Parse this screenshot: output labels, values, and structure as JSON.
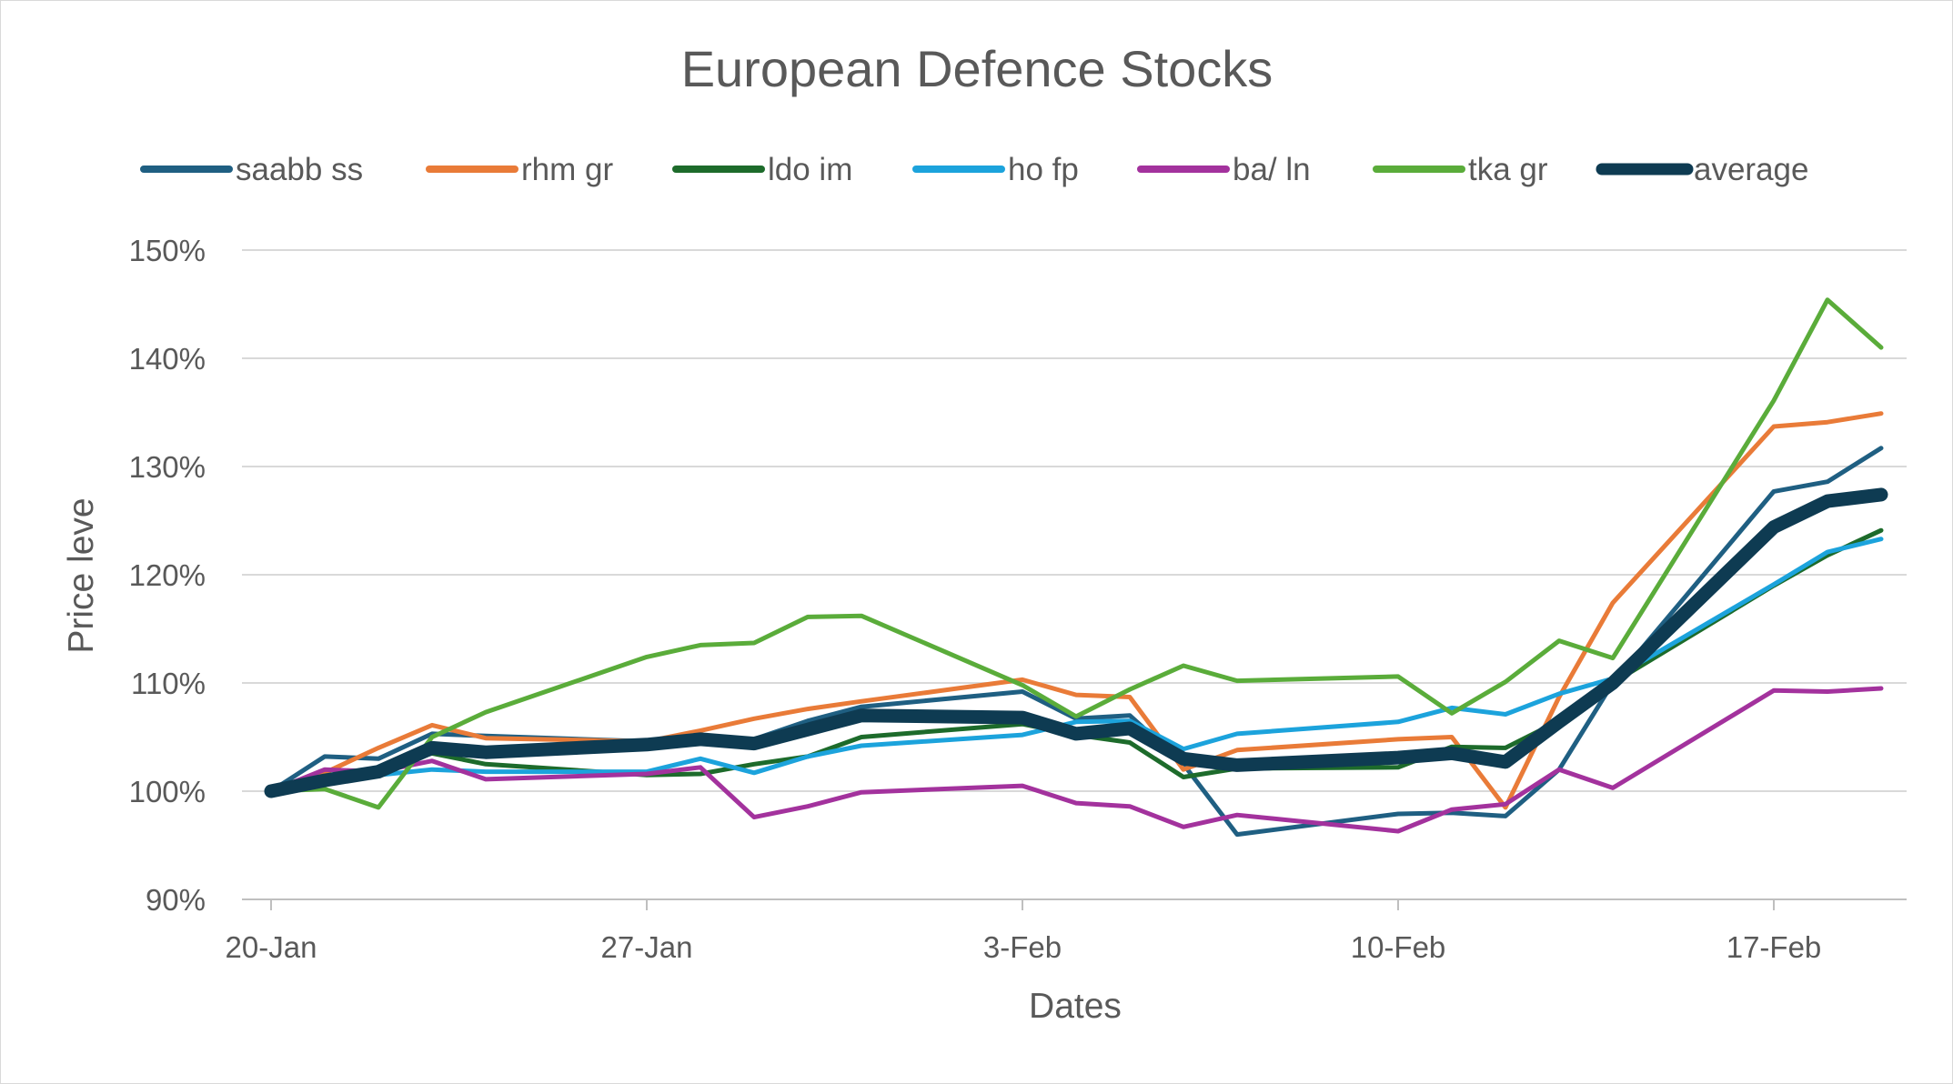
{
  "chart_data": {
    "type": "line",
    "title": "European Defence Stocks",
    "xlabel": "Dates",
    "ylabel": "Price leve",
    "ylim": [
      0.9,
      1.5
    ],
    "yticks": [
      0.9,
      1.0,
      1.1,
      1.2,
      1.3,
      1.4,
      1.5
    ],
    "ytick_labels": [
      "90%",
      "100%",
      "110%",
      "120%",
      "130%",
      "140%",
      "150%"
    ],
    "xlim": [
      0,
      31
    ],
    "xticks": [
      0,
      7,
      14,
      21,
      28
    ],
    "xtick_labels": [
      "20-Jan",
      "27-Jan",
      "3-Feb",
      "10-Feb",
      "17-Feb"
    ],
    "x": [
      0,
      1,
      2,
      3,
      4,
      7,
      8,
      9,
      10,
      11,
      14,
      15,
      16,
      17,
      18,
      21,
      22,
      23,
      24,
      25,
      28,
      29,
      30
    ],
    "grid": "horizontal",
    "legend_position": "top",
    "series": [
      {
        "name": "saabb ss",
        "color": "#1f5f82",
        "width": 5,
        "values": [
          1.0,
          1.032,
          1.03,
          1.053,
          1.051,
          1.046,
          1.044,
          1.048,
          1.065,
          1.078,
          1.092,
          1.067,
          1.07,
          1.025,
          0.96,
          0.979,
          0.98,
          0.977,
          1.02,
          1.1,
          1.277,
          1.286,
          1.317
        ]
      },
      {
        "name": "rhm gr",
        "color": "#e97b38",
        "width": 5,
        "values": [
          1.0,
          1.017,
          1.04,
          1.061,
          1.049,
          1.046,
          1.056,
          1.067,
          1.076,
          1.083,
          1.103,
          1.089,
          1.087,
          1.02,
          1.038,
          1.048,
          1.05,
          0.985,
          1.087,
          1.174,
          1.337,
          1.341,
          1.349
        ]
      },
      {
        "name": "ldo im",
        "color": "#1d6b2b",
        "width": 5,
        "values": [
          1.0,
          1.01,
          1.02,
          1.035,
          1.025,
          1.015,
          1.016,
          1.025,
          1.032,
          1.05,
          1.062,
          1.052,
          1.045,
          1.013,
          1.021,
          1.022,
          1.041,
          1.04,
          1.065,
          1.1,
          1.19,
          1.218,
          1.241
        ]
      },
      {
        "name": "ho fp",
        "color": "#1ca3dc",
        "width": 5,
        "values": [
          1.0,
          1.01,
          1.015,
          1.02,
          1.018,
          1.018,
          1.03,
          1.017,
          1.032,
          1.042,
          1.052,
          1.064,
          1.065,
          1.039,
          1.053,
          1.064,
          1.077,
          1.071,
          1.09,
          1.104,
          1.191,
          1.221,
          1.233
        ]
      },
      {
        "name": "ba/ ln",
        "color": "#a3329d",
        "width": 5,
        "values": [
          1.0,
          1.02,
          1.018,
          1.028,
          1.011,
          1.016,
          1.022,
          0.976,
          0.986,
          0.999,
          1.005,
          0.989,
          0.986,
          0.967,
          0.978,
          0.963,
          0.983,
          0.988,
          1.02,
          1.003,
          1.093,
          1.092,
          1.095
        ]
      },
      {
        "name": "tka gr",
        "color": "#5aac3a",
        "width": 5,
        "values": [
          1.0,
          1.002,
          0.985,
          1.05,
          1.073,
          1.124,
          1.135,
          1.137,
          1.161,
          1.162,
          1.098,
          1.069,
          1.094,
          1.116,
          1.102,
          1.106,
          1.072,
          1.101,
          1.139,
          1.123,
          1.361,
          1.454,
          1.41
        ]
      },
      {
        "name": "average",
        "color": "#0e3b52",
        "width": 15,
        "values": [
          1.0,
          1.01,
          1.018,
          1.04,
          1.036,
          1.043,
          1.048,
          1.044,
          1.057,
          1.07,
          1.068,
          1.053,
          1.058,
          1.03,
          1.024,
          1.031,
          1.035,
          1.027,
          1.064,
          1.1,
          1.244,
          1.268,
          1.274
        ]
      }
    ]
  }
}
